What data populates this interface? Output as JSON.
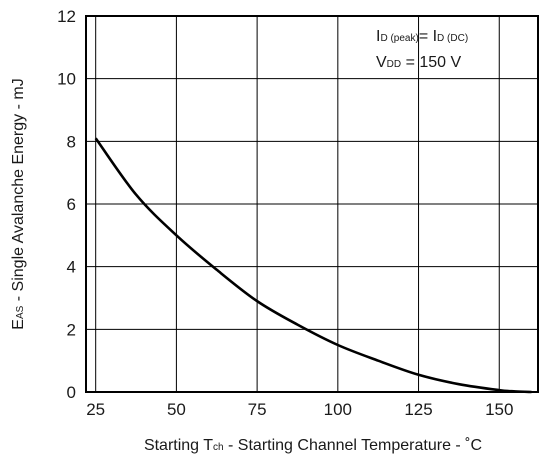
{
  "chart_data": {
    "type": "line",
    "x": [
      25,
      37.5,
      50,
      62.5,
      75,
      87.5,
      100,
      112.5,
      125,
      137.5,
      150,
      155,
      160
    ],
    "series": [
      {
        "values": [
          8.1,
          6.3,
          5.0,
          3.9,
          2.9,
          2.15,
          1.5,
          1.0,
          0.55,
          0.25,
          0.06,
          0.02,
          0.0
        ]
      }
    ],
    "xlim": [
      22,
      162
    ],
    "ylim": [
      0,
      12
    ],
    "xticks": [
      25,
      50,
      75,
      100,
      125,
      150
    ],
    "yticks": [
      0,
      2,
      4,
      6,
      8,
      10,
      12
    ],
    "xlabel": {
      "prefix": "Starting T",
      "sub": "ch",
      "suffix": " - Starting Channel Temperature - ˚C"
    },
    "ylabel": {
      "prefix": "E",
      "sub": "AS",
      "suffix": " - Single Avalanche Energy - mJ"
    },
    "grid": true,
    "annotation": {
      "line1": {
        "a": "I",
        "a_sub": "D (peak)",
        "b": "= I",
        "b_sub": "D (DC)"
      },
      "line2": {
        "a": "V",
        "a_sub": "DD",
        "b": " = 150 V"
      }
    }
  }
}
